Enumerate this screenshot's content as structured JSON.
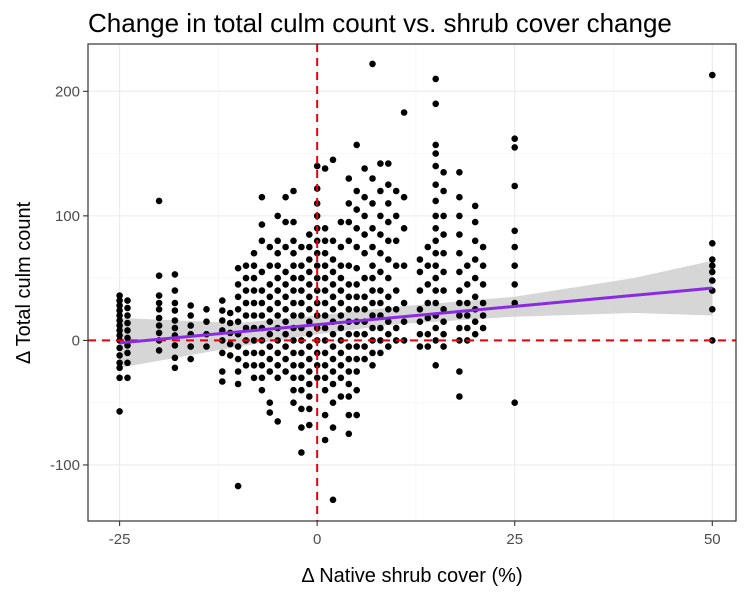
{
  "chart_data": {
    "type": "scatter",
    "title": "Change in total culm count vs. shrub cover change",
    "xlabel": "Δ Native shrub cover (%)",
    "ylabel": "Δ Total culm count",
    "xlim": [
      -29,
      53
    ],
    "ylim": [
      -145,
      238
    ],
    "x_ticks": [
      -25,
      0,
      25,
      50
    ],
    "x_tick_labels": [
      "-25",
      "0",
      "25",
      "50"
    ],
    "y_ticks": [
      -100,
      0,
      100,
      200
    ],
    "y_tick_labels": [
      "-100",
      "0",
      "100",
      "200"
    ],
    "grid": true,
    "reference_lines": {
      "x": 0,
      "y": 0,
      "color": "#e8000b",
      "style": "dashed"
    },
    "trend": {
      "x": [
        -25,
        50
      ],
      "y": [
        -2,
        42
      ],
      "color": "#8a2be2"
    },
    "confidence_band": {
      "x": [
        -25,
        -10,
        0,
        10,
        25,
        40,
        50
      ],
      "lower": [
        -22,
        -5,
        5,
        13,
        19,
        22,
        20
      ],
      "upper": [
        18,
        14,
        20,
        27,
        35,
        50,
        64
      ]
    },
    "points": [
      [
        -25,
        -57
      ],
      [
        -25,
        -30
      ],
      [
        -25,
        -22
      ],
      [
        -25,
        -18
      ],
      [
        -25,
        -12
      ],
      [
        -25,
        -6
      ],
      [
        -25,
        0
      ],
      [
        -25,
        4
      ],
      [
        -25,
        8
      ],
      [
        -25,
        12
      ],
      [
        -25,
        16
      ],
      [
        -25,
        20
      ],
      [
        -25,
        24
      ],
      [
        -25,
        28
      ],
      [
        -25,
        32
      ],
      [
        -25,
        36
      ],
      [
        -24,
        -30
      ],
      [
        -24,
        -18
      ],
      [
        -24,
        -10
      ],
      [
        -24,
        -4
      ],
      [
        -24,
        2
      ],
      [
        -24,
        8
      ],
      [
        -24,
        14
      ],
      [
        -24,
        20
      ],
      [
        -24,
        26
      ],
      [
        -24,
        32
      ],
      [
        -20,
        112
      ],
      [
        -20,
        -8
      ],
      [
        -20,
        0
      ],
      [
        -20,
        6
      ],
      [
        -20,
        12
      ],
      [
        -20,
        18
      ],
      [
        -20,
        25
      ],
      [
        -20,
        30
      ],
      [
        -20,
        36
      ],
      [
        -20,
        52
      ],
      [
        -18,
        -22
      ],
      [
        -18,
        -14
      ],
      [
        -18,
        -4
      ],
      [
        -18,
        4
      ],
      [
        -18,
        10
      ],
      [
        -18,
        16
      ],
      [
        -18,
        24
      ],
      [
        -18,
        30
      ],
      [
        -18,
        40
      ],
      [
        -18,
        53
      ],
      [
        -16,
        -15
      ],
      [
        -16,
        -5
      ],
      [
        -16,
        5
      ],
      [
        -16,
        12
      ],
      [
        -16,
        20
      ],
      [
        -16,
        28
      ],
      [
        -14,
        -5
      ],
      [
        -14,
        5
      ],
      [
        -14,
        15
      ],
      [
        -14,
        25
      ],
      [
        -12,
        -33
      ],
      [
        -12,
        -25
      ],
      [
        -12,
        -10
      ],
      [
        -12,
        0
      ],
      [
        -12,
        8
      ],
      [
        -12,
        16
      ],
      [
        -12,
        24
      ],
      [
        -12,
        32
      ],
      [
        -11,
        -12
      ],
      [
        -11,
        -3
      ],
      [
        -11,
        6
      ],
      [
        -11,
        14
      ],
      [
        -11,
        22
      ],
      [
        -10,
        -117
      ],
      [
        -10,
        -35
      ],
      [
        -10,
        -25
      ],
      [
        -10,
        -15
      ],
      [
        -10,
        -5
      ],
      [
        -10,
        5
      ],
      [
        -10,
        15
      ],
      [
        -10,
        25
      ],
      [
        -10,
        35
      ],
      [
        -10,
        45
      ],
      [
        -10,
        58
      ],
      [
        -9,
        -20
      ],
      [
        -9,
        -10
      ],
      [
        -9,
        0
      ],
      [
        -9,
        10
      ],
      [
        -9,
        20
      ],
      [
        -9,
        30
      ],
      [
        -9,
        40
      ],
      [
        -9,
        50
      ],
      [
        -9,
        60
      ],
      [
        -8,
        -30
      ],
      [
        -8,
        -20
      ],
      [
        -8,
        -10
      ],
      [
        -8,
        0
      ],
      [
        -8,
        10
      ],
      [
        -8,
        20
      ],
      [
        -8,
        30
      ],
      [
        -8,
        40
      ],
      [
        -8,
        50
      ],
      [
        -8,
        60
      ],
      [
        -8,
        70
      ],
      [
        -7,
        -40
      ],
      [
        -7,
        -30
      ],
      [
        -7,
        -20
      ],
      [
        -7,
        -10
      ],
      [
        -7,
        0
      ],
      [
        -7,
        10
      ],
      [
        -7,
        20
      ],
      [
        -7,
        30
      ],
      [
        -7,
        40
      ],
      [
        -7,
        55
      ],
      [
        -7,
        80
      ],
      [
        -7,
        93
      ],
      [
        -7,
        115
      ],
      [
        -6,
        -58
      ],
      [
        -6,
        -50
      ],
      [
        -6,
        -25
      ],
      [
        -6,
        -15
      ],
      [
        -6,
        -5
      ],
      [
        -6,
        5
      ],
      [
        -6,
        15
      ],
      [
        -6,
        25
      ],
      [
        -6,
        35
      ],
      [
        -6,
        45
      ],
      [
        -6,
        60
      ],
      [
        -6,
        75
      ],
      [
        -5,
        -65
      ],
      [
        -5,
        -30
      ],
      [
        -5,
        -20
      ],
      [
        -5,
        -10
      ],
      [
        -5,
        0
      ],
      [
        -5,
        10
      ],
      [
        -5,
        20
      ],
      [
        -5,
        30
      ],
      [
        -5,
        40
      ],
      [
        -5,
        50
      ],
      [
        -5,
        60
      ],
      [
        -5,
        70
      ],
      [
        -5,
        80
      ],
      [
        -5,
        100
      ],
      [
        -4,
        -25
      ],
      [
        -4,
        -15
      ],
      [
        -4,
        -5
      ],
      [
        -4,
        5
      ],
      [
        -4,
        15
      ],
      [
        -4,
        25
      ],
      [
        -4,
        35
      ],
      [
        -4,
        45
      ],
      [
        -4,
        55
      ],
      [
        -4,
        75
      ],
      [
        -4,
        95
      ],
      [
        -4,
        115
      ],
      [
        -3,
        -50
      ],
      [
        -3,
        -40
      ],
      [
        -3,
        -30
      ],
      [
        -3,
        -20
      ],
      [
        -3,
        -10
      ],
      [
        -3,
        0
      ],
      [
        -3,
        10
      ],
      [
        -3,
        20
      ],
      [
        -3,
        30
      ],
      [
        -3,
        40
      ],
      [
        -3,
        50
      ],
      [
        -3,
        60
      ],
      [
        -3,
        70
      ],
      [
        -3,
        80
      ],
      [
        -3,
        95
      ],
      [
        -3,
        120
      ],
      [
        -2,
        -90
      ],
      [
        -2,
        -70
      ],
      [
        -2,
        -55
      ],
      [
        -2,
        -40
      ],
      [
        -2,
        -30
      ],
      [
        -2,
        -20
      ],
      [
        -2,
        -10
      ],
      [
        -2,
        0
      ],
      [
        -2,
        10
      ],
      [
        -2,
        20
      ],
      [
        -2,
        30
      ],
      [
        -2,
        40
      ],
      [
        -2,
        50
      ],
      [
        -2,
        60
      ],
      [
        -2,
        75
      ],
      [
        -1,
        -68
      ],
      [
        -1,
        -55
      ],
      [
        -1,
        -45
      ],
      [
        -1,
        -35
      ],
      [
        -1,
        -25
      ],
      [
        -1,
        -15
      ],
      [
        -1,
        -5
      ],
      [
        -1,
        5
      ],
      [
        -1,
        15
      ],
      [
        -1,
        25
      ],
      [
        -1,
        35
      ],
      [
        -1,
        45
      ],
      [
        -1,
        55
      ],
      [
        -1,
        65
      ],
      [
        -1,
        75
      ],
      [
        -1,
        85
      ],
      [
        0,
        -30
      ],
      [
        0,
        -20
      ],
      [
        0,
        -10
      ],
      [
        0,
        0
      ],
      [
        0,
        10
      ],
      [
        0,
        20
      ],
      [
        0,
        30
      ],
      [
        0,
        40
      ],
      [
        0,
        50
      ],
      [
        0,
        60
      ],
      [
        0,
        70
      ],
      [
        0,
        80
      ],
      [
        0,
        90
      ],
      [
        0,
        100
      ],
      [
        0,
        110
      ],
      [
        0,
        122
      ],
      [
        0,
        140
      ],
      [
        1,
        -80
      ],
      [
        1,
        -60
      ],
      [
        1,
        -40
      ],
      [
        1,
        -30
      ],
      [
        1,
        -20
      ],
      [
        1,
        -10
      ],
      [
        1,
        0
      ],
      [
        1,
        10
      ],
      [
        1,
        20
      ],
      [
        1,
        30
      ],
      [
        1,
        40
      ],
      [
        1,
        50
      ],
      [
        1,
        60
      ],
      [
        1,
        70
      ],
      [
        1,
        80
      ],
      [
        1,
        90
      ],
      [
        1,
        138
      ],
      [
        2,
        -128
      ],
      [
        2,
        -70
      ],
      [
        2,
        -50
      ],
      [
        2,
        -35
      ],
      [
        2,
        -25
      ],
      [
        2,
        -15
      ],
      [
        2,
        -5
      ],
      [
        2,
        5
      ],
      [
        2,
        15
      ],
      [
        2,
        25
      ],
      [
        2,
        35
      ],
      [
        2,
        45
      ],
      [
        2,
        55
      ],
      [
        2,
        65
      ],
      [
        2,
        80
      ],
      [
        2,
        145
      ],
      [
        3,
        -45
      ],
      [
        3,
        -30
      ],
      [
        3,
        -20
      ],
      [
        3,
        -10
      ],
      [
        3,
        0
      ],
      [
        3,
        10
      ],
      [
        3,
        20
      ],
      [
        3,
        30
      ],
      [
        3,
        40
      ],
      [
        3,
        50
      ],
      [
        3,
        60
      ],
      [
        3,
        75
      ],
      [
        3,
        95
      ],
      [
        4,
        -75
      ],
      [
        4,
        -60
      ],
      [
        4,
        -45
      ],
      [
        4,
        -35
      ],
      [
        4,
        -25
      ],
      [
        4,
        -15
      ],
      [
        4,
        -5
      ],
      [
        4,
        5
      ],
      [
        4,
        15
      ],
      [
        4,
        25
      ],
      [
        4,
        35
      ],
      [
        4,
        45
      ],
      [
        4,
        60
      ],
      [
        4,
        80
      ],
      [
        4,
        95
      ],
      [
        4,
        110
      ],
      [
        4,
        130
      ],
      [
        5,
        -60
      ],
      [
        5,
        -40
      ],
      [
        5,
        -25
      ],
      [
        5,
        -15
      ],
      [
        5,
        -5
      ],
      [
        5,
        5
      ],
      [
        5,
        15
      ],
      [
        5,
        25
      ],
      [
        5,
        35
      ],
      [
        5,
        45
      ],
      [
        5,
        58
      ],
      [
        5,
        75
      ],
      [
        5,
        90
      ],
      [
        5,
        105
      ],
      [
        5,
        120
      ],
      [
        5,
        157
      ],
      [
        6,
        -15
      ],
      [
        6,
        -5
      ],
      [
        6,
        5
      ],
      [
        6,
        15
      ],
      [
        6,
        25
      ],
      [
        6,
        35
      ],
      [
        6,
        50
      ],
      [
        6,
        70
      ],
      [
        6,
        85
      ],
      [
        6,
        100
      ],
      [
        6,
        115
      ],
      [
        6,
        138
      ],
      [
        7,
        222
      ],
      [
        7,
        -20
      ],
      [
        7,
        -10
      ],
      [
        7,
        0
      ],
      [
        7,
        10
      ],
      [
        7,
        20
      ],
      [
        7,
        30
      ],
      [
        7,
        40
      ],
      [
        7,
        50
      ],
      [
        7,
        60
      ],
      [
        7,
        75
      ],
      [
        7,
        90
      ],
      [
        7,
        110
      ],
      [
        7,
        130
      ],
      [
        8,
        -10
      ],
      [
        8,
        0
      ],
      [
        8,
        10
      ],
      [
        8,
        20
      ],
      [
        8,
        30
      ],
      [
        8,
        40
      ],
      [
        8,
        55
      ],
      [
        8,
        70
      ],
      [
        8,
        85
      ],
      [
        8,
        100
      ],
      [
        8,
        120
      ],
      [
        8,
        142
      ],
      [
        9,
        -5
      ],
      [
        9,
        5
      ],
      [
        9,
        15
      ],
      [
        9,
        25
      ],
      [
        9,
        35
      ],
      [
        9,
        50
      ],
      [
        9,
        65
      ],
      [
        9,
        80
      ],
      [
        9,
        95
      ],
      [
        9,
        110
      ],
      [
        9,
        125
      ],
      [
        9,
        142
      ],
      [
        10,
        0
      ],
      [
        10,
        10
      ],
      [
        10,
        25
      ],
      [
        10,
        40
      ],
      [
        10,
        60
      ],
      [
        10,
        80
      ],
      [
        10,
        100
      ],
      [
        10,
        120
      ],
      [
        11,
        183
      ],
      [
        11,
        0
      ],
      [
        11,
        15
      ],
      [
        11,
        30
      ],
      [
        11,
        60
      ],
      [
        11,
        90
      ],
      [
        11,
        115
      ],
      [
        13,
        -5
      ],
      [
        13,
        5
      ],
      [
        13,
        15
      ],
      [
        13,
        25
      ],
      [
        13,
        40
      ],
      [
        13,
        55
      ],
      [
        13,
        65
      ],
      [
        14,
        -5
      ],
      [
        14,
        5
      ],
      [
        14,
        18
      ],
      [
        14,
        30
      ],
      [
        14,
        45
      ],
      [
        14,
        60
      ],
      [
        14,
        75
      ],
      [
        15,
        210
      ],
      [
        15,
        190
      ],
      [
        15,
        157
      ],
      [
        15,
        150
      ],
      [
        15,
        140
      ],
      [
        15,
        125
      ],
      [
        15,
        112
      ],
      [
        15,
        100
      ],
      [
        15,
        90
      ],
      [
        15,
        80
      ],
      [
        15,
        70
      ],
      [
        15,
        60
      ],
      [
        15,
        50
      ],
      [
        15,
        40
      ],
      [
        15,
        30
      ],
      [
        15,
        20
      ],
      [
        15,
        10
      ],
      [
        15,
        0
      ],
      [
        15,
        -20
      ],
      [
        16,
        -5
      ],
      [
        16,
        5
      ],
      [
        16,
        15
      ],
      [
        16,
        25
      ],
      [
        16,
        40
      ],
      [
        16,
        55
      ],
      [
        16,
        70
      ],
      [
        16,
        85
      ],
      [
        16,
        100
      ],
      [
        16,
        120
      ],
      [
        16,
        135
      ],
      [
        18,
        -45
      ],
      [
        18,
        -25
      ],
      [
        18,
        0
      ],
      [
        18,
        10
      ],
      [
        18,
        20
      ],
      [
        18,
        30
      ],
      [
        18,
        40
      ],
      [
        18,
        55
      ],
      [
        18,
        70
      ],
      [
        18,
        85
      ],
      [
        18,
        100
      ],
      [
        18,
        115
      ],
      [
        18,
        135
      ],
      [
        19,
        0
      ],
      [
        19,
        10
      ],
      [
        19,
        20
      ],
      [
        19,
        30
      ],
      [
        19,
        45
      ],
      [
        19,
        60
      ],
      [
        20,
        5
      ],
      [
        20,
        15
      ],
      [
        20,
        25
      ],
      [
        20,
        35
      ],
      [
        20,
        50
      ],
      [
        20,
        65
      ],
      [
        20,
        80
      ],
      [
        20,
        95
      ],
      [
        20,
        108
      ],
      [
        21,
        10
      ],
      [
        21,
        20
      ],
      [
        21,
        30
      ],
      [
        21,
        45
      ],
      [
        21,
        60
      ],
      [
        21,
        75
      ],
      [
        25,
        162
      ],
      [
        25,
        155
      ],
      [
        25,
        124
      ],
      [
        25,
        88
      ],
      [
        25,
        75
      ],
      [
        25,
        60
      ],
      [
        25,
        45
      ],
      [
        25,
        30
      ],
      [
        25,
        -50
      ],
      [
        50,
        213
      ],
      [
        50,
        78
      ],
      [
        50,
        65
      ],
      [
        50,
        60
      ],
      [
        50,
        55
      ],
      [
        50,
        48
      ],
      [
        50,
        40
      ],
      [
        50,
        25
      ],
      [
        50,
        0
      ]
    ]
  }
}
